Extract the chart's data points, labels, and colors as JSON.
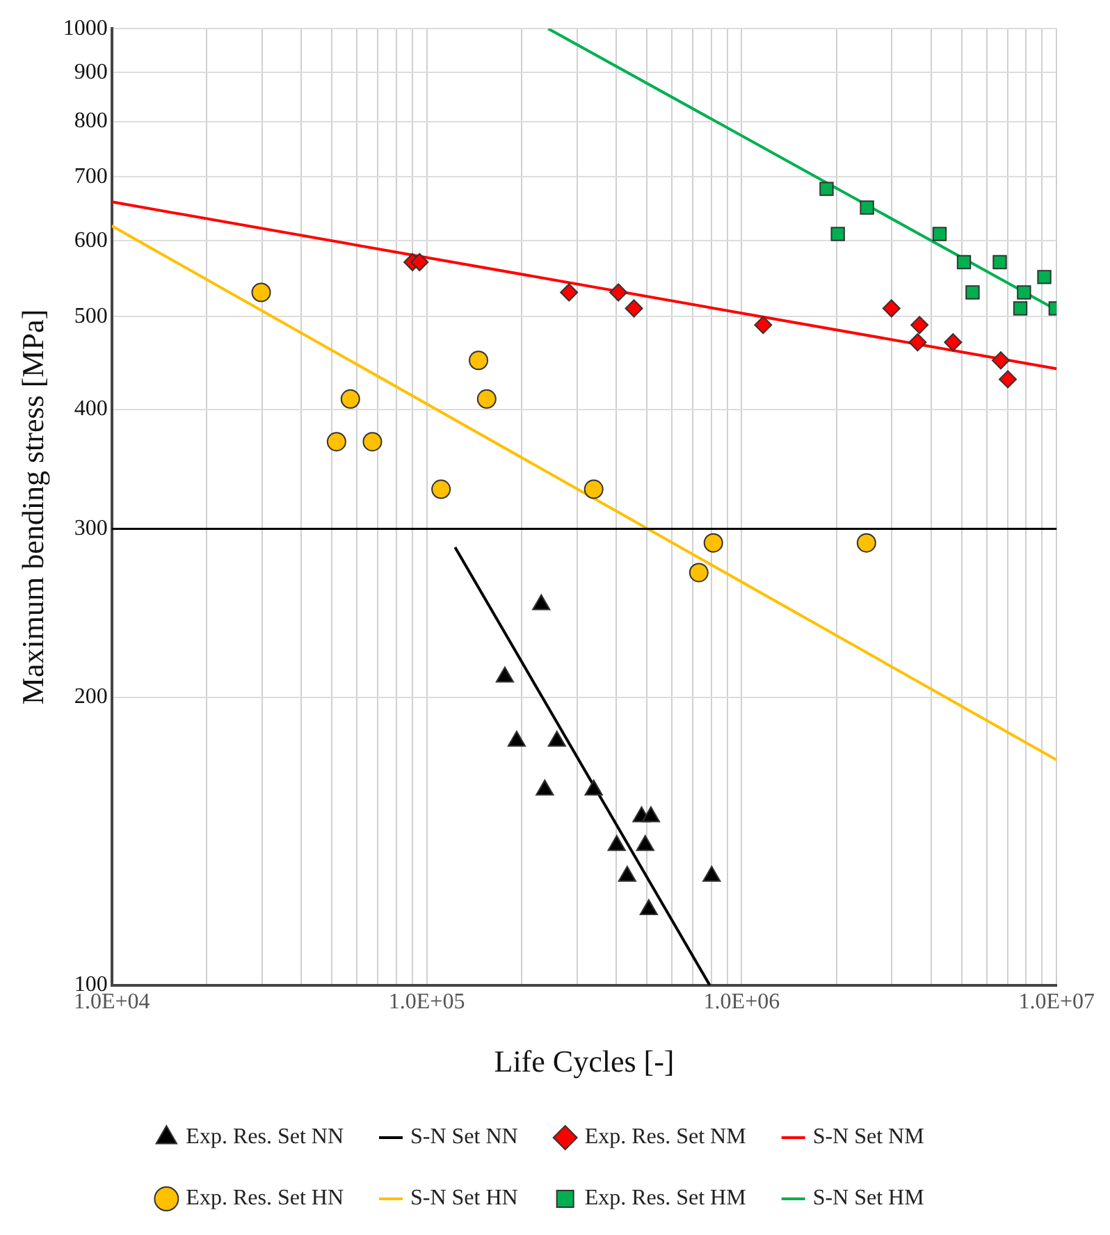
{
  "chart_data": {
    "type": "scatter",
    "xlabel": "Life Cycles [-]",
    "ylabel": "Maximum bending stress [MPa]",
    "log": "xy",
    "grid": true,
    "legend": "bottom",
    "xlim": [
      10000,
      10000000
    ],
    "ylim": [
      100,
      1000
    ],
    "xticks": [
      {
        "value": 10000,
        "label": "1.0E+04"
      },
      {
        "value": 20000,
        "label": null
      },
      {
        "value": 30000,
        "label": null
      },
      {
        "value": 40000,
        "label": null
      },
      {
        "value": 50000,
        "label": null
      },
      {
        "value": 60000,
        "label": null
      },
      {
        "value": 70000,
        "label": null
      },
      {
        "value": 80000,
        "label": null
      },
      {
        "value": 90000,
        "label": null
      },
      {
        "value": 100000,
        "label": "1.0E+05"
      },
      {
        "value": 200000,
        "label": null
      },
      {
        "value": 300000,
        "label": null
      },
      {
        "value": 400000,
        "label": null
      },
      {
        "value": 500000,
        "label": null
      },
      {
        "value": 600000,
        "label": null
      },
      {
        "value": 700000,
        "label": null
      },
      {
        "value": 800000,
        "label": null
      },
      {
        "value": 900000,
        "label": null
      },
      {
        "value": 1000000,
        "label": "1.0E+06"
      },
      {
        "value": 2000000,
        "label": null
      },
      {
        "value": 3000000,
        "label": null
      },
      {
        "value": 4000000,
        "label": null
      },
      {
        "value": 5000000,
        "label": null
      },
      {
        "value": 6000000,
        "label": null
      },
      {
        "value": 7000000,
        "label": null
      },
      {
        "value": 8000000,
        "label": null
      },
      {
        "value": 9000000,
        "label": null
      },
      {
        "value": 10000000,
        "label": "1.0E+07"
      }
    ],
    "yticks": [
      100,
      200,
      300,
      400,
      500,
      600,
      700,
      800,
      900,
      1000
    ],
    "ref_lines": [
      {
        "axis": "y",
        "value": 300,
        "color": "#000000"
      }
    ],
    "series": [
      {
        "name": "Exp. Res. Set NN",
        "type": "scatter",
        "marker": "triangle",
        "color": "#000000",
        "x": [
          231000,
          177000,
          193000,
          259000,
          237000,
          339000,
          481000,
          515000,
          401000,
          494000,
          433000,
          803000,
          507000
        ],
        "values": [
          250,
          210,
          180,
          180,
          160,
          160,
          150,
          150,
          140,
          140,
          130,
          130,
          120
        ]
      },
      {
        "name": "S-N Set NN",
        "type": "line",
        "marker": "none",
        "color": "#000000",
        "x": [
          123000,
          792000
        ],
        "values": [
          287,
          100
        ]
      },
      {
        "name": "Exp. Res. Set NM",
        "type": "scatter",
        "marker": "diamond",
        "color": "#ff0000",
        "x": [
          90100,
          94900,
          283000,
          406000,
          455000,
          1170000,
          2990000,
          3670000,
          3620000,
          4690000,
          6650000,
          7000000
        ],
        "values": [
          570,
          570,
          530,
          530,
          510,
          490,
          510,
          490,
          470,
          470,
          450,
          430
        ]
      },
      {
        "name": "S-N Set NM",
        "type": "line",
        "marker": "none",
        "color": "#ff0000",
        "x": [
          10000,
          10000000
        ],
        "values": [
          659,
          441
        ]
      },
      {
        "name": "Exp. Res. Set HN",
        "type": "scatter",
        "marker": "circle",
        "color": "#ffc000",
        "x": [
          29800,
          57200,
          51700,
          67200,
          111000,
          146000,
          155000,
          339000,
          813000,
          731000,
          2490000
        ],
        "values": [
          530,
          410,
          370,
          370,
          330,
          450,
          410,
          330,
          290,
          270,
          290
        ]
      },
      {
        "name": "S-N Set HN",
        "type": "line",
        "marker": "none",
        "color": "#ffc000",
        "x": [
          10000,
          10000000
        ],
        "values": [
          622,
          172
        ]
      },
      {
        "name": "Exp. Res. Set HM",
        "type": "scatter",
        "marker": "square",
        "color": "#00b050",
        "x": [
          1860000,
          2020000,
          2500000,
          4250000,
          5080000,
          6600000,
          5410000,
          7880000,
          7670000,
          9140000,
          9930000
        ],
        "values": [
          680,
          610,
          650,
          610,
          570,
          570,
          530,
          530,
          510,
          550,
          510
        ]
      },
      {
        "name": "S-N Set HM",
        "type": "line",
        "marker": "none",
        "color": "#00b050",
        "x": [
          243000,
          10000000
        ],
        "values": [
          1000,
          508
        ]
      }
    ]
  }
}
